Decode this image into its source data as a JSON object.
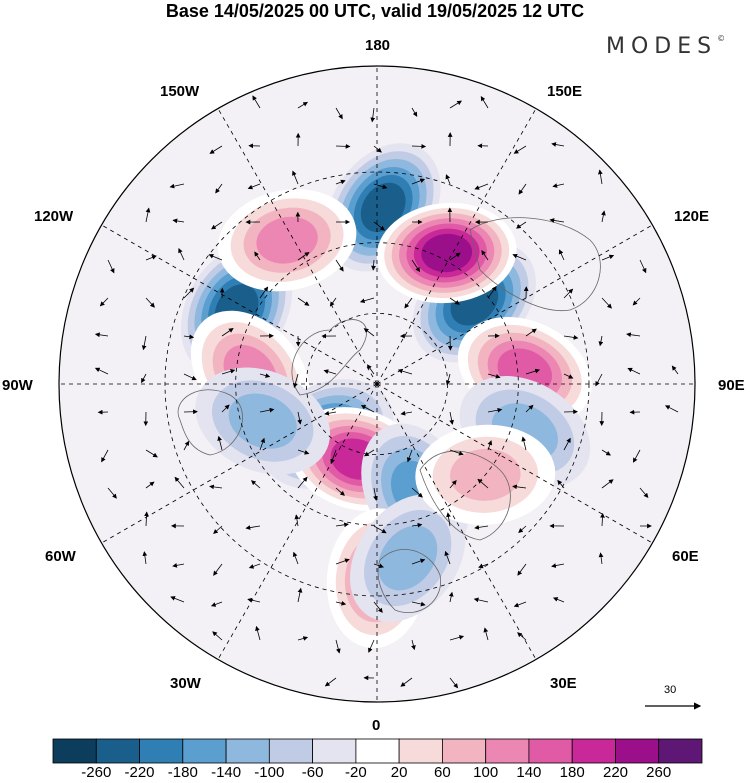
{
  "title": "Base 14/05/2025 00 UTC, valid 19/05/2025 12 UTC",
  "brand": "MODES",
  "brand_mark": "©",
  "longitude_labels": {
    "top": "180",
    "bottom": "0",
    "left": "90W",
    "right": "90E",
    "upper_left_1": "150W",
    "upper_left_2": "120W",
    "upper_right_1": "150E",
    "upper_right_2": "120E",
    "lower_left_1": "60W",
    "lower_left_2": "30W",
    "lower_right_1": "60E",
    "lower_right_2": "30E"
  },
  "vector_scale": {
    "label": "30"
  },
  "colorbar": {
    "labels": [
      "-260",
      "-220",
      "-180",
      "-140",
      "-100",
      "-60",
      "-20",
      "20",
      "60",
      "100",
      "140",
      "180",
      "220",
      "260"
    ],
    "colors": [
      "#0d3d5c",
      "#1a5f8c",
      "#2f7fb5",
      "#5b9fd0",
      "#8fb8de",
      "#c0cbe6",
      "#e4e3f0",
      "#ffffff",
      "#f7dada",
      "#f3b4c2",
      "#ec86b3",
      "#e05aa6",
      "#c82898",
      "#9c0f8a",
      "#5e1774"
    ]
  },
  "anomaly_centers": [
    {
      "lon": 178,
      "colat": 50,
      "level": -180
    },
    {
      "lon": -118,
      "colat": 45,
      "level": -200
    },
    {
      "lon": 130,
      "colat": 36,
      "level": -180
    },
    {
      "lon": 152,
      "colat": 42,
      "level": 220
    },
    {
      "lon": -148,
      "colat": 48,
      "level": 120
    },
    {
      "lon": -95,
      "colat": 36,
      "level": 100
    },
    {
      "lon": 95,
      "colat": 42,
      "level": 140
    },
    {
      "lon": 72,
      "colat": 44,
      "level": -80
    },
    {
      "lon": -45,
      "colat": 20,
      "level": -140
    },
    {
      "lon": -15,
      "colat": 22,
      "level": 180
    },
    {
      "lon": 20,
      "colat": 32,
      "level": -100
    },
    {
      "lon": -72,
      "colat": 34,
      "level": -60
    },
    {
      "lon": 0,
      "colat": 55,
      "level": 100
    },
    {
      "lon": 10,
      "colat": 50,
      "level": -60
    },
    {
      "lon": 50,
      "colat": 40,
      "level": 60
    }
  ]
}
